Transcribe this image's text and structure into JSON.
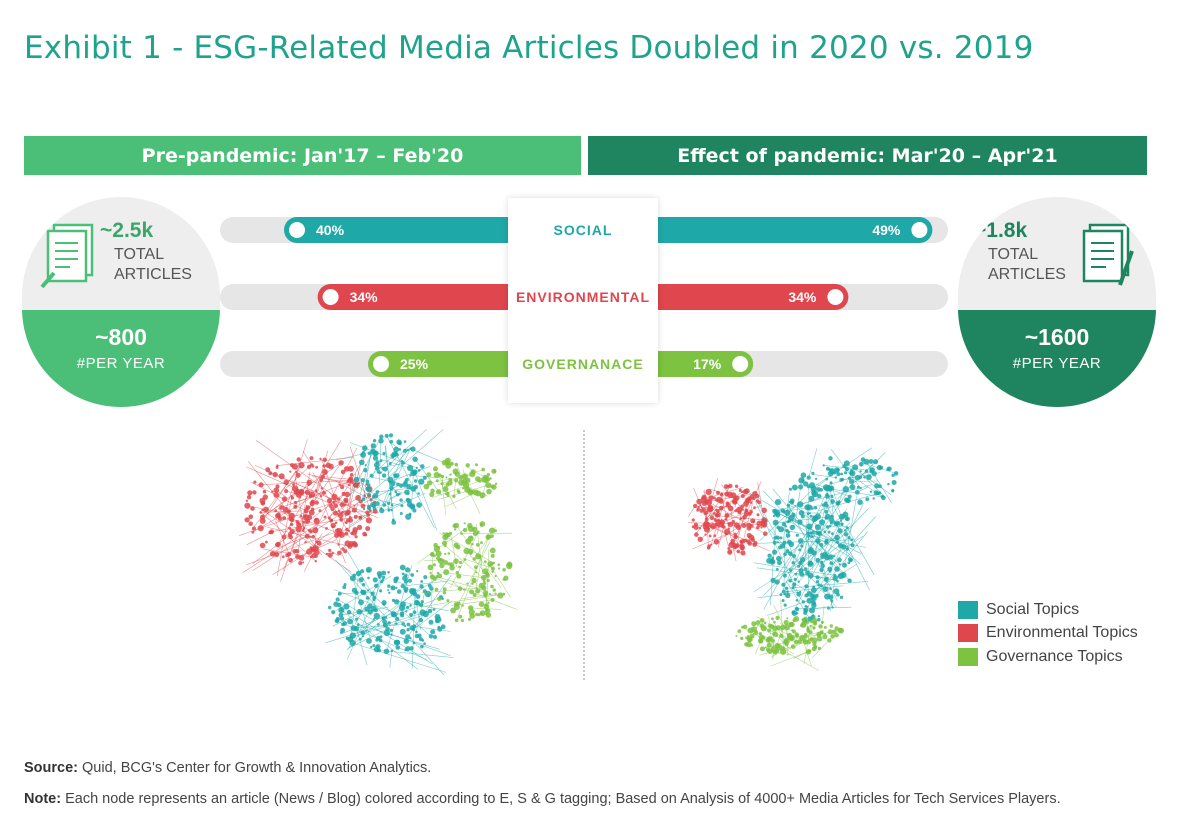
{
  "title": "Exhibit 1 - ESG-Related Media Articles Doubled in 2020 vs. 2019",
  "left_header": "Pre-pandemic: Jan'17 – Feb'20",
  "right_header": "Effect of pandemic: Mar'20 – Apr'21",
  "left_summary": {
    "total": "~2.5k",
    "total_label_1": "TOTAL",
    "total_label_2": "ARTICLES",
    "per_year": "~800",
    "per_year_label": "#PER YEAR"
  },
  "right_summary": {
    "total": "~1.8k",
    "total_label_1": "TOTAL",
    "total_label_2": "ARTICLES",
    "per_year": "~1600",
    "per_year_label": "#PER YEAR"
  },
  "colors": {
    "social": "#1fa8a8",
    "environmental": "#e0464d",
    "governance": "#7dc241",
    "light_green": "#4bbf78",
    "dark_green": "#1e8560"
  },
  "chart_data": {
    "type": "bar",
    "categories": [
      "SOCIAL",
      "ENVIRONMENTAL",
      "GOVERNANACE"
    ],
    "series": [
      {
        "name": "Pre-pandemic: Jan'17 – Feb'20",
        "values": [
          40,
          34,
          25
        ]
      },
      {
        "name": "Effect of pandemic: Mar'20 – Apr'21",
        "values": [
          49,
          34,
          17
        ]
      }
    ],
    "value_labels_left": [
      "40%",
      "34%",
      "25%"
    ],
    "value_labels_right": [
      "49%",
      "34%",
      "17%"
    ],
    "ylim": [
      0,
      100
    ]
  },
  "legend": [
    "Social Topics",
    "Environmental Topics",
    "Governance Topics"
  ],
  "footer": {
    "source_label": "Source:",
    "source_text": " Quid, BCG's Center for Growth & Innovation Analytics.",
    "note_label": "Note:",
    "note_text": " Each node represents an article (News / Blog) colored according to E, S & G tagging; Based on Analysis of 4000+ Media Articles for Tech Services Players."
  }
}
